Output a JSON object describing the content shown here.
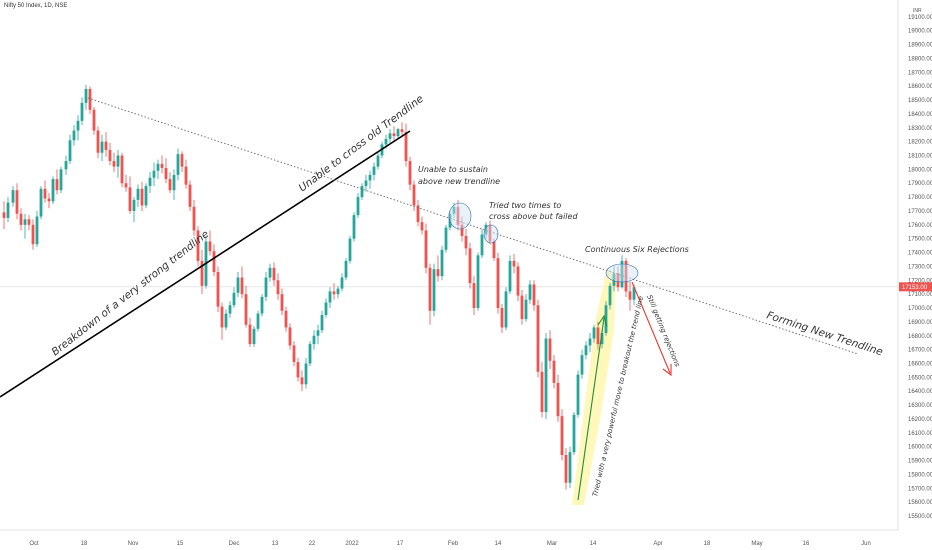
{
  "header": {
    "title": "Nifty 50 Index, 1D, NSE"
  },
  "chart_data": {
    "type": "candlestick",
    "currency": "INR",
    "ylim": [
      15500,
      19200
    ],
    "y_ticks": [
      19200,
      19100,
      19000,
      18900,
      18800,
      18700,
      18600,
      18500,
      18400,
      18300,
      18200,
      18100,
      18000,
      17900,
      17800,
      17700,
      17600,
      17500,
      17400,
      17300,
      17200,
      17100,
      17000,
      16900,
      16800,
      16700,
      16600,
      16500,
      16400,
      16300,
      16200,
      16100,
      16000,
      15900,
      15800,
      15700,
      15600,
      15500
    ],
    "x_ticks": [
      "Oct",
      "18",
      "Nov",
      "15",
      "Dec",
      "13",
      "22",
      "2022",
      "17",
      "Feb",
      "14",
      "Mar",
      "14",
      "Apr",
      "18",
      "May",
      "16",
      "Jun"
    ],
    "last_price": "17153.00",
    "annotations": [
      {
        "id": "a1",
        "text": "Breakdown of a very strong trendline",
        "rot": -38,
        "size": 10.5,
        "color": "#222"
      },
      {
        "id": "a2",
        "text": "Unable to cross old Trendline",
        "rot": -37,
        "size": 10.5,
        "color": "#222"
      },
      {
        "id": "a3",
        "text": "Unable to sustain",
        "rot": 0,
        "size": 8,
        "color": "#333"
      },
      {
        "id": "a4",
        "text": "above new trendline",
        "rot": 0,
        "size": 8,
        "color": "#333"
      },
      {
        "id": "a5",
        "text": "Tried two times to",
        "rot": 0,
        "size": 8,
        "color": "#333"
      },
      {
        "id": "a6",
        "text": "cross above but failed",
        "rot": 0,
        "size": 8,
        "color": "#333"
      },
      {
        "id": "a7",
        "text": "Continuous Six Rejections",
        "rot": 0,
        "size": 8,
        "color": "#333"
      },
      {
        "id": "a8",
        "text": "Forming New Trendline",
        "rot": 18,
        "size": 10.5,
        "color": "#222"
      },
      {
        "id": "a9",
        "text": "Tried with a very powerful move to breakout the trend line",
        "rot": -77,
        "size": 7,
        "color": "#222"
      },
      {
        "id": "a10",
        "text": "Still getting rejections",
        "rot": 68,
        "size": 7,
        "color": "#222"
      }
    ],
    "colors": {
      "up": "#26a69a",
      "down": "#ef5350",
      "wick": "#333333",
      "highlight": "#fff59d"
    }
  }
}
